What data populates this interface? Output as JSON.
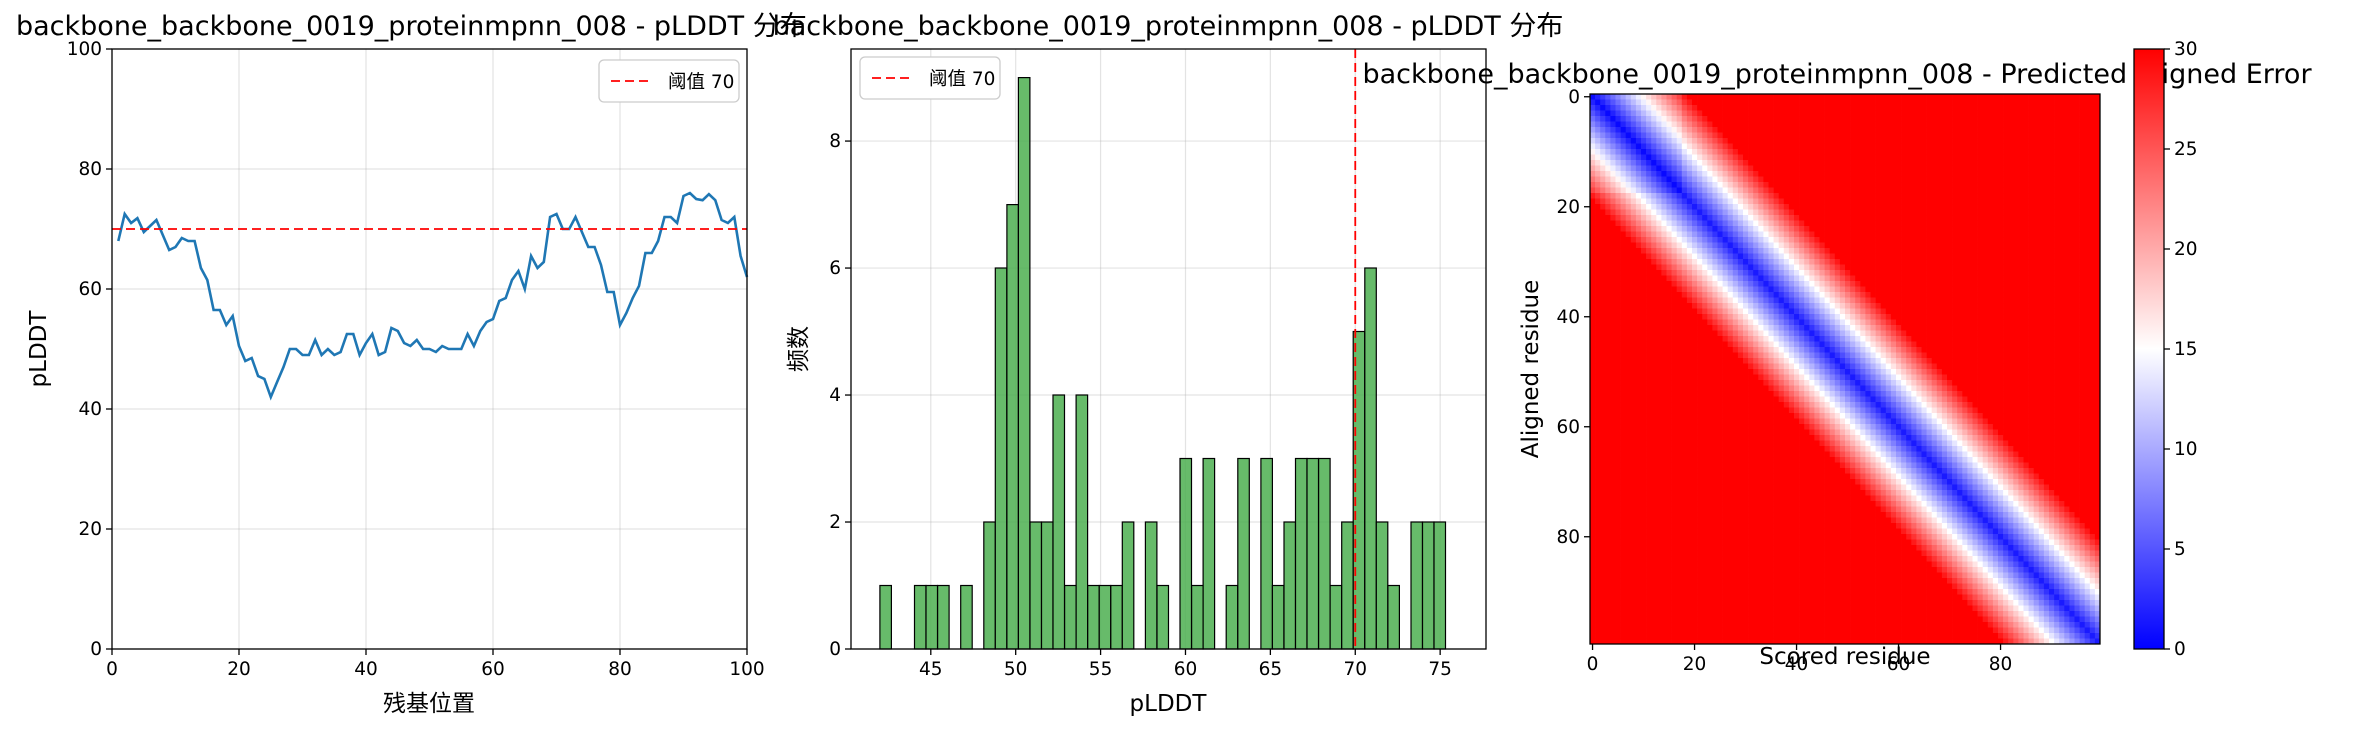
{
  "chart_data": [
    {
      "type": "line",
      "title": "backbone_backbone_0019_proteinmpnn_008 - pLDDT 分布",
      "xlabel": "残基位置",
      "ylabel": "pLDDT",
      "xlim": [
        0,
        100
      ],
      "ylim": [
        0,
        100
      ],
      "xticks": [
        "0",
        "20",
        "40",
        "60",
        "80",
        "100"
      ],
      "yticks": [
        "0",
        "20",
        "40",
        "60",
        "80",
        "100"
      ],
      "grid": true,
      "legend": {
        "placement": "top-right",
        "entries": [
          "阈值 70"
        ]
      },
      "threshold": {
        "value": 70,
        "label": "阈值 70",
        "color": "#ff0000",
        "style": "dashed"
      },
      "series": [
        {
          "color": "#1f77b4",
          "x": [
            1,
            2,
            3,
            4,
            5,
            6,
            7,
            8,
            9,
            10,
            11,
            12,
            13,
            14,
            15,
            16,
            17,
            18,
            19,
            20,
            21,
            22,
            23,
            24,
            25,
            26,
            27,
            28,
            29,
            30,
            31,
            32,
            33,
            34,
            35,
            36,
            37,
            38,
            39,
            40,
            41,
            42,
            43,
            44,
            45,
            46,
            47,
            48,
            49,
            50,
            51,
            52,
            53,
            54,
            55,
            56,
            57,
            58,
            59,
            60,
            61,
            62,
            63,
            64,
            65,
            66,
            67,
            68,
            69,
            70,
            71,
            72,
            73,
            74,
            75,
            76,
            77,
            78,
            79,
            80,
            81,
            82,
            83,
            84,
            85,
            86,
            87,
            88,
            89,
            90,
            91,
            92,
            93,
            94,
            95,
            96,
            97,
            98,
            99,
            100
          ],
          "values": [
            68,
            72.5,
            71,
            71.8,
            69.5,
            70.5,
            71.5,
            69,
            66.5,
            67,
            68.5,
            68,
            68,
            63.5,
            61.5,
            56.5,
            56.5,
            54,
            55.5,
            50.5,
            48,
            48.5,
            45.5,
            45,
            42,
            44.5,
            47,
            50,
            50,
            49,
            49,
            51.5,
            49,
            50,
            49,
            49.5,
            52.5,
            52.5,
            49,
            51,
            52.5,
            49,
            49.5,
            53.5,
            53,
            51,
            50.5,
            51.5,
            50,
            50,
            49.5,
            50.5,
            50,
            50,
            50,
            52.5,
            50.5,
            53,
            54.5,
            55,
            58,
            58.5,
            61.5,
            63,
            60,
            65.5,
            63.5,
            64.5,
            72,
            72.5,
            70,
            70,
            72,
            69.5,
            67,
            67,
            64,
            59.5,
            59.5,
            54,
            56,
            58.5,
            60.5,
            66,
            66,
            68,
            72,
            72,
            71,
            75.5,
            76,
            75,
            74.8,
            75.8,
            74.8,
            71.5,
            71,
            72,
            65.5,
            62
          ]
        }
      ]
    },
    {
      "type": "bar",
      "title": "backbone_backbone_0019_proteinmpnn_008 - pLDDT 分布",
      "xlabel": "pLDDT",
      "ylabel": "频数",
      "xlim": [
        40.3,
        77.7
      ],
      "ylim": [
        0,
        9.45
      ],
      "xticks": [
        "45",
        "50",
        "55",
        "60",
        "65",
        "70",
        "75"
      ],
      "yticks": [
        "0",
        "2",
        "4",
        "6",
        "8"
      ],
      "grid": true,
      "legend": {
        "placement": "top-left",
        "entries": [
          "阈值 70"
        ]
      },
      "threshold": {
        "value": 70,
        "label": "阈值 70",
        "color": "#ff0000",
        "style": "dashed"
      },
      "bar_color": "#4caf50",
      "bin_width": 0.68,
      "bin_start": 42.0,
      "values": [
        1,
        0,
        0,
        1,
        1,
        1,
        0,
        1,
        0,
        2,
        6,
        7,
        9,
        2,
        2,
        4,
        1,
        4,
        1,
        1,
        1,
        2,
        0,
        2,
        1,
        0,
        3,
        1,
        3,
        0,
        1,
        3,
        0,
        3,
        1,
        2,
        3,
        3,
        3,
        1,
        2,
        5,
        6,
        2,
        1,
        0,
        2,
        2,
        2
      ]
    },
    {
      "type": "heatmap",
      "title": "backbone_backbone_0019_proteinmpnn_008 - Predicted Aligned Error",
      "xlabel": "Scored residue",
      "ylabel": "Aligned residue",
      "size": 100,
      "xticks": [
        "0",
        "20",
        "40",
        "60",
        "80"
      ],
      "yticks": [
        "0",
        "20",
        "40",
        "60",
        "80"
      ],
      "colormap": "bwr",
      "colorbar": {
        "min": 0,
        "max": 30,
        "ticks": [
          "0",
          "5",
          "10",
          "15",
          "20",
          "25",
          "30"
        ]
      }
    }
  ]
}
